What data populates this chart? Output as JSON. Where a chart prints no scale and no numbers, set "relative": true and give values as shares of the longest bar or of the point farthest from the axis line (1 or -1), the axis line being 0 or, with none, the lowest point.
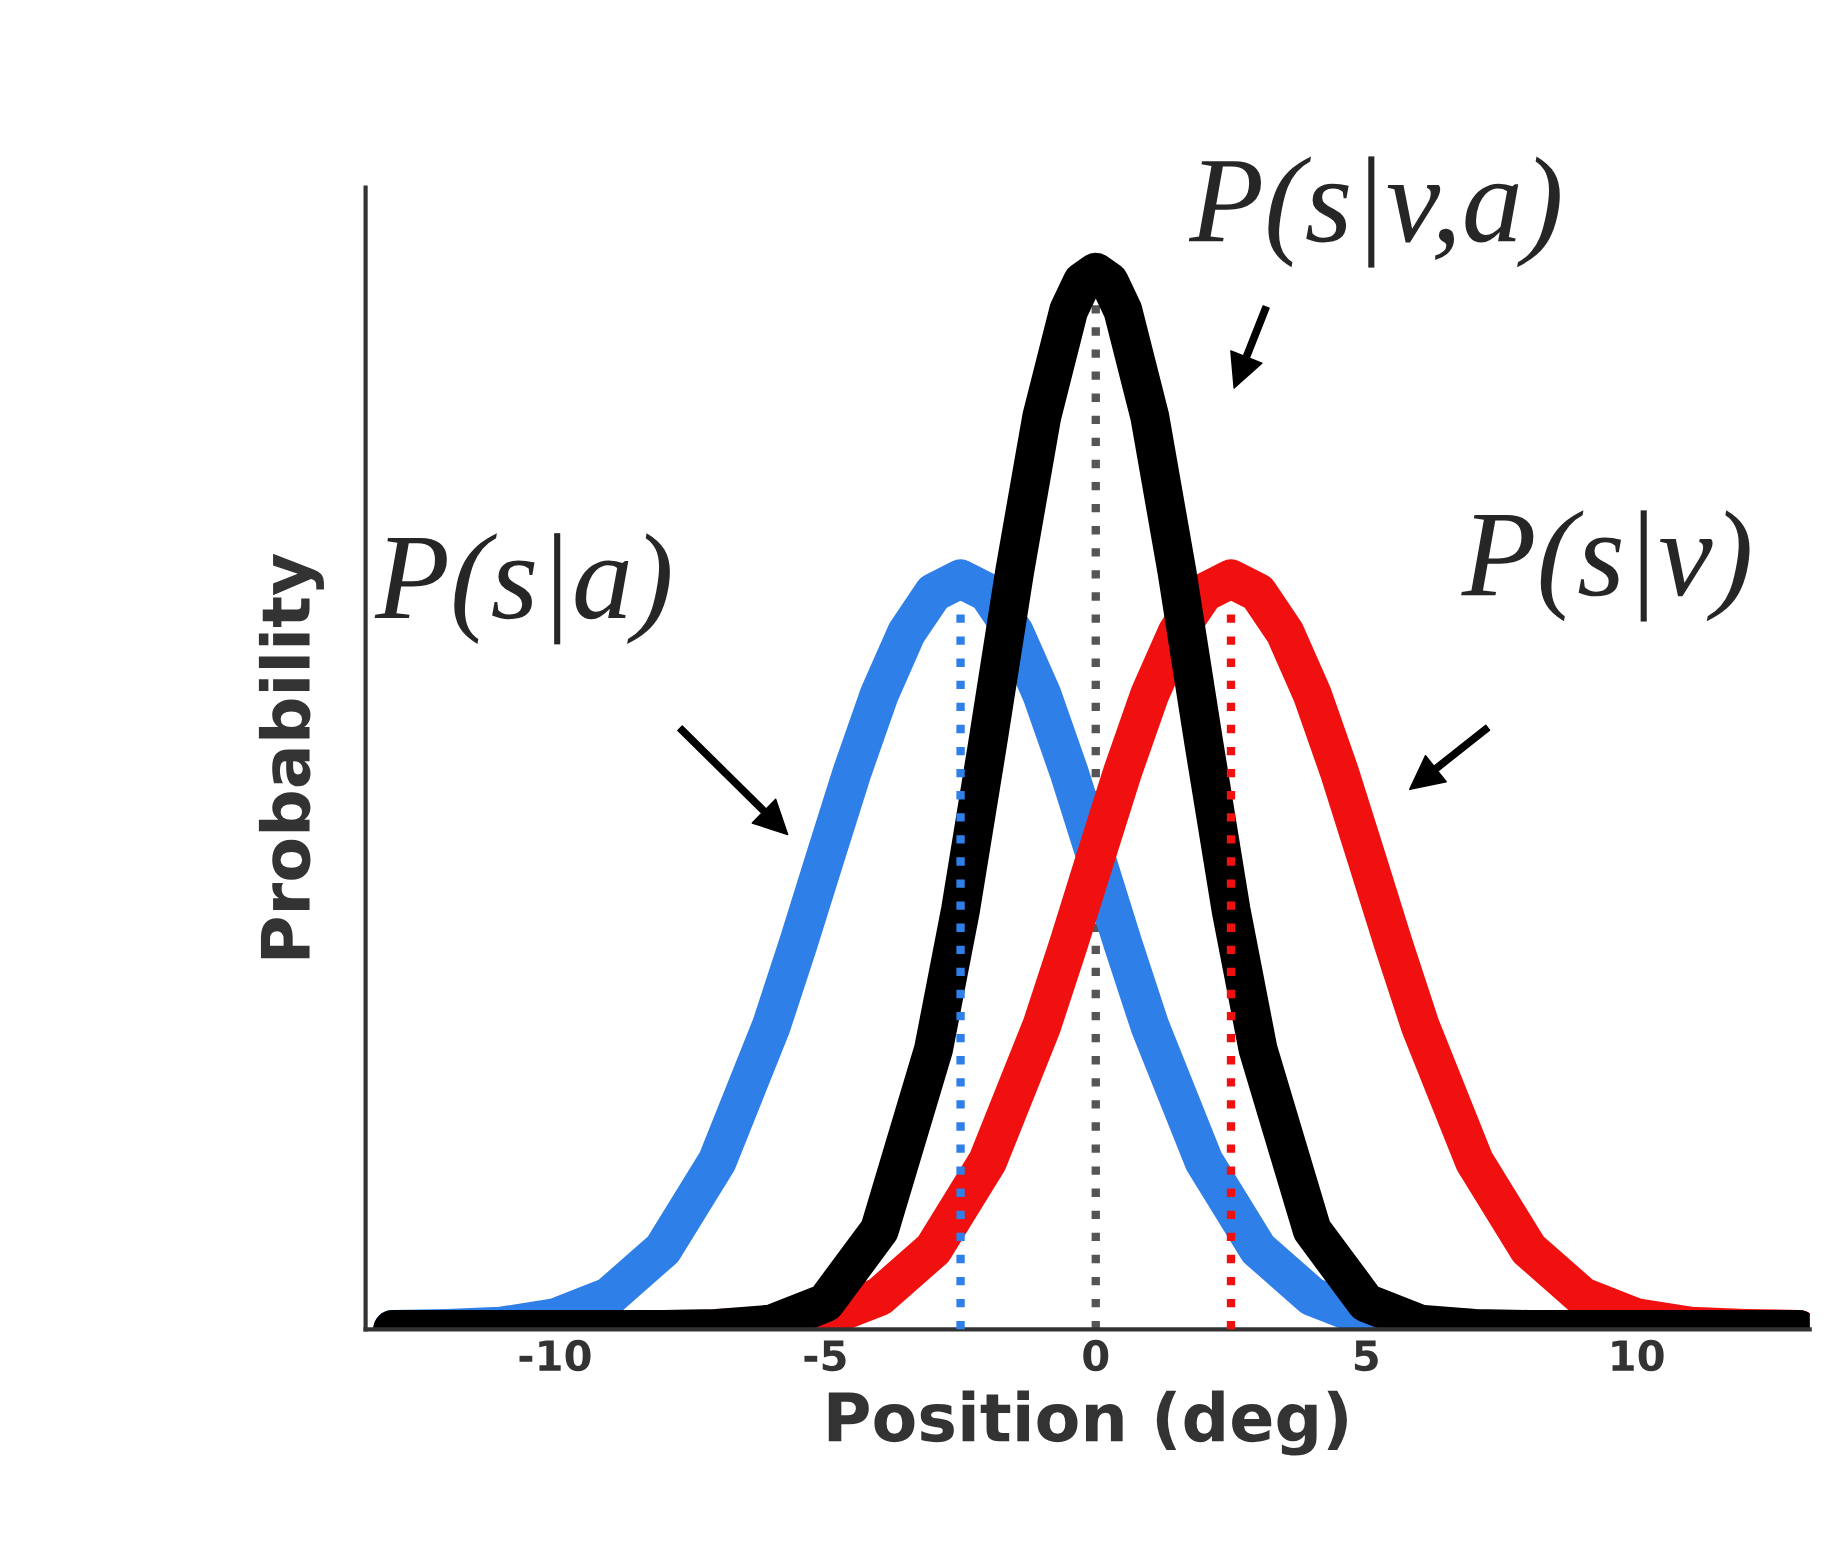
{
  "chart_data": {
    "type": "line",
    "relative": true,
    "xlabel": "Position (deg)",
    "ylabel": "Probability",
    "xlim": [
      -13.5,
      13.2
    ],
    "xticks": [
      -10,
      -5,
      0,
      5,
      10
    ],
    "grid": false,
    "legend": false,
    "line_style": "solid",
    "marker": "none",
    "series": [
      {
        "color": "#2f7fe8",
        "x": [
          -13,
          -12,
          -11,
          -10,
          -9,
          -8,
          -7,
          -6,
          -5.5,
          -5,
          -4.5,
          -4,
          -3.5,
          -3,
          -2.5,
          -2,
          -1.5,
          -1,
          -0.5,
          0,
          0.5,
          1,
          2,
          3,
          4,
          5,
          6,
          7
        ],
        "values": [
          0,
          0.001,
          0.003,
          0.011,
          0.031,
          0.076,
          0.159,
          0.287,
          0.365,
          0.447,
          0.528,
          0.601,
          0.659,
          0.697,
          0.71,
          0.697,
          0.659,
          0.601,
          0.528,
          0.447,
          0.365,
          0.287,
          0.159,
          0.076,
          0.031,
          0.011,
          0.003,
          0.001
        ]
      },
      {
        "color": "#f01010",
        "x": [
          -7,
          -6,
          -5,
          -4,
          -3,
          -2,
          -1,
          -0.5,
          0,
          0.5,
          1,
          1.5,
          2,
          2.5,
          3,
          3.5,
          4,
          4.5,
          5,
          5.5,
          6,
          7,
          8,
          9,
          10,
          11,
          12,
          13
        ],
        "values": [
          0.001,
          0.003,
          0.011,
          0.031,
          0.076,
          0.159,
          0.287,
          0.365,
          0.447,
          0.528,
          0.601,
          0.659,
          0.697,
          0.71,
          0.697,
          0.659,
          0.601,
          0.528,
          0.447,
          0.365,
          0.287,
          0.159,
          0.076,
          0.031,
          0.011,
          0.003,
          0.001,
          0
        ]
      },
      {
        "color": "#000000",
        "x": [
          -13,
          -10,
          -8,
          -7,
          -6,
          -5,
          -4,
          -3,
          -2.5,
          -2,
          -1.5,
          -1,
          -0.5,
          -0.25,
          0,
          0.25,
          0.5,
          1,
          1.5,
          2,
          2.5,
          3,
          4,
          5,
          6,
          7,
          8,
          10,
          13
        ],
        "values": [
          0,
          0,
          0,
          0.001,
          0.005,
          0.025,
          0.094,
          0.265,
          0.397,
          0.554,
          0.717,
          0.863,
          0.964,
          0.991,
          1,
          0.991,
          0.964,
          0.863,
          0.717,
          0.554,
          0.397,
          0.265,
          0.094,
          0.025,
          0.005,
          0.001,
          0,
          0,
          0
        ]
      },
      {
        "color": "#2f7fe8",
        "x": [
          -2.5,
          -2.5
        ],
        "values": [
          0,
          0.71
        ],
        "line_style": "dotted"
      },
      {
        "color": "#f01010",
        "x": [
          2.5,
          2.5
        ],
        "values": [
          0,
          0.71
        ],
        "line_style": "dotted"
      }
    ],
    "ref_lines": [
      {
        "axis": "x",
        "value": 0,
        "color": "#555555",
        "line_style": "dotted"
      }
    ],
    "annotations": [
      "P(s|a)",
      "P(s|v)",
      "P(s|v,a)"
    ]
  }
}
